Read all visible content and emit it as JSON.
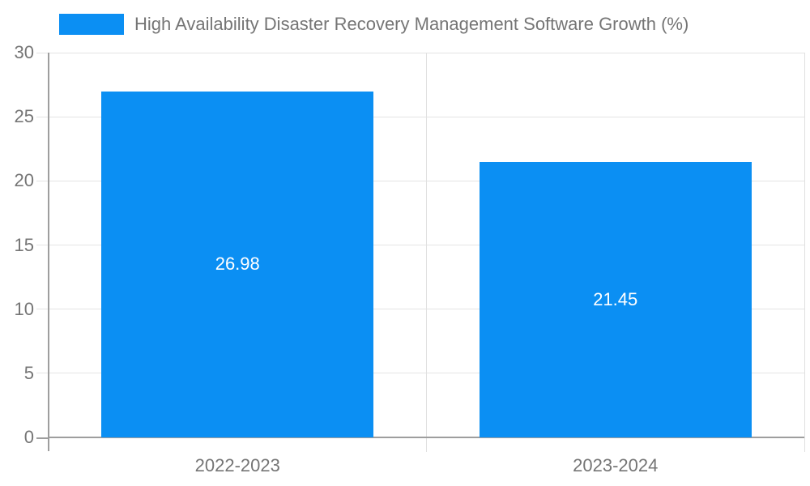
{
  "chart_data": {
    "type": "bar",
    "title": "High Availability Disaster Recovery Management Software Growth (%)",
    "categories": [
      "2022-2023",
      "2023-2024"
    ],
    "values": [
      26.98,
      21.45
    ],
    "value_labels": [
      "26.98",
      "21.45"
    ],
    "ylim": [
      0,
      30
    ],
    "yticks": [
      0,
      5,
      10,
      15,
      20,
      25,
      30
    ],
    "grid": true,
    "legend_position": "top-left",
    "xlabel": "",
    "ylabel": ""
  },
  "colors": {
    "bar": "#0b8ff3",
    "value_label": "#ffffff",
    "text": "#757575",
    "grid": "#e4e4e4",
    "divider": "#e0e0e0",
    "axis": "#9e9e9e"
  }
}
